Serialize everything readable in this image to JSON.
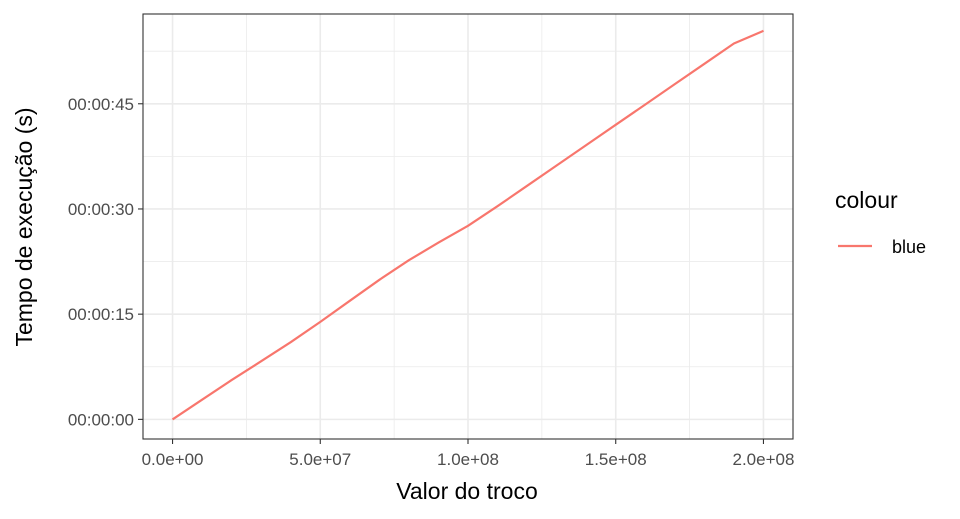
{
  "chart_data": {
    "type": "line",
    "xlabel": "Valor do troco",
    "ylabel": "Tempo de execução (s)",
    "x_ticks": [
      0,
      50000000,
      100000000,
      150000000,
      200000000
    ],
    "x_tick_labels": [
      "0.0e+00",
      "5.0e+07",
      "1.0e+08",
      "1.5e+08",
      "2.0e+08"
    ],
    "y_ticks": [
      0,
      15,
      30,
      45
    ],
    "y_tick_labels": [
      "00:00:00",
      "00:00:15",
      "00:00:30",
      "00:00:45"
    ],
    "xlim": [
      -10000000,
      210000000
    ],
    "ylim": [
      -2.8,
      57.8
    ],
    "grid": true,
    "legend_position": "right",
    "legend": {
      "title": "colour",
      "entries": [
        "blue"
      ]
    },
    "series": [
      {
        "name": "blue",
        "color": "#F8766D",
        "x": [
          0,
          10000000,
          20000000,
          30000000,
          40000000,
          50000000,
          60000000,
          70000000,
          80000000,
          90000000,
          100000000,
          110000000,
          120000000,
          130000000,
          140000000,
          150000000,
          160000000,
          170000000,
          180000000,
          190000000,
          200000000
        ],
        "y": [
          0,
          2.8,
          5.6,
          8.3,
          11.0,
          13.9,
          16.9,
          19.9,
          22.7,
          25.2,
          27.6,
          30.4,
          33.3,
          36.2,
          39.1,
          42.0,
          44.9,
          47.8,
          50.7,
          53.6,
          55.4
        ]
      }
    ]
  }
}
